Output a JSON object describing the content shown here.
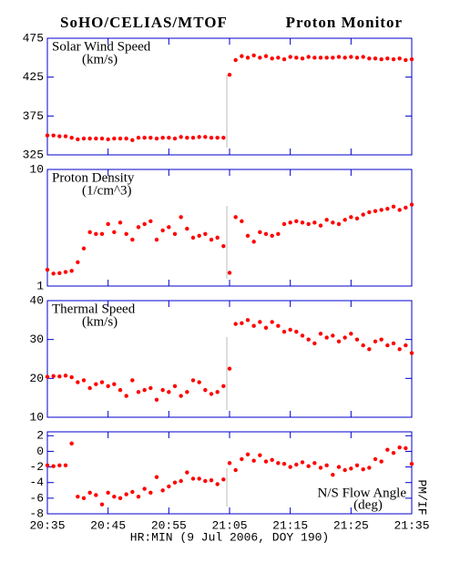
{
  "header": {
    "title": "SoHO/CELIAS/MTOF",
    "subtitle": "Proton Monitor",
    "xlabel": "HR:MIN (9 Jul 2006, DOY 190)",
    "side_label": "PM/IF"
  },
  "chart_data": [
    {
      "type": "scatter",
      "title": "Solar Wind Speed",
      "unit": "(km/s)",
      "color": "#ff0000",
      "log": false,
      "xlim": [
        1235,
        1295
      ],
      "xticks": [
        {
          "value": 1235,
          "label": "20:35"
        },
        {
          "value": 1245,
          "label": "20:45"
        },
        {
          "value": 1255,
          "label": "20:55"
        },
        {
          "value": 1265,
          "label": "21:05"
        },
        {
          "value": 1275,
          "label": "21:15"
        },
        {
          "value": 1285,
          "label": "21:25"
        },
        {
          "value": 1295,
          "label": "21:35"
        }
      ],
      "ylim": [
        325,
        475
      ],
      "yticks": [
        475,
        425,
        375,
        325
      ],
      "x": [
        1235,
        1236,
        1237,
        1238,
        1239,
        1240,
        1241,
        1242,
        1243,
        1244,
        1245,
        1246,
        1247,
        1248,
        1249,
        1250,
        1251,
        1252,
        1253,
        1254,
        1255,
        1256,
        1257,
        1258,
        1259,
        1260,
        1261,
        1262,
        1263,
        1264,
        1265,
        1266,
        1267,
        1268,
        1269,
        1270,
        1271,
        1272,
        1273,
        1274,
        1275,
        1276,
        1277,
        1278,
        1279,
        1280,
        1281,
        1282,
        1283,
        1284,
        1285,
        1286,
        1287,
        1288,
        1289,
        1290,
        1291,
        1292,
        1293,
        1294,
        1295
      ],
      "values": [
        350,
        350,
        349,
        349,
        347,
        345,
        346,
        346,
        346,
        346,
        345,
        346,
        346,
        346,
        344,
        347,
        347,
        347,
        346,
        347,
        347,
        346,
        348,
        347,
        347,
        348,
        348,
        347,
        347,
        347,
        428,
        447,
        452,
        450,
        453,
        450,
        452,
        449,
        450,
        448,
        451,
        450,
        449,
        451,
        450,
        450,
        450,
        450,
        451,
        450,
        451,
        450,
        451,
        449,
        449,
        448,
        449,
        448,
        449,
        447,
        448
      ]
    },
    {
      "type": "scatter",
      "title": "Proton Density",
      "unit": "(1/cm^3)",
      "color": "#ff0000",
      "log": true,
      "xlim": [
        1235,
        1295
      ],
      "xticks": [
        {
          "value": 1235,
          "label": "20:35"
        },
        {
          "value": 1245,
          "label": "20:45"
        },
        {
          "value": 1255,
          "label": "20:55"
        },
        {
          "value": 1265,
          "label": "21:05"
        },
        {
          "value": 1275,
          "label": "21:15"
        },
        {
          "value": 1285,
          "label": "21:25"
        },
        {
          "value": 1295,
          "label": "21:35"
        }
      ],
      "ylim": [
        1,
        10
      ],
      "yticks": [
        10,
        1
      ],
      "x": [
        1235,
        1236,
        1237,
        1238,
        1239,
        1240,
        1241,
        1242,
        1243,
        1244,
        1245,
        1246,
        1247,
        1248,
        1249,
        1250,
        1251,
        1252,
        1253,
        1254,
        1255,
        1256,
        1257,
        1258,
        1259,
        1260,
        1261,
        1262,
        1263,
        1264,
        1265,
        1266,
        1267,
        1268,
        1269,
        1270,
        1271,
        1272,
        1273,
        1274,
        1275,
        1276,
        1277,
        1278,
        1279,
        1280,
        1281,
        1282,
        1283,
        1284,
        1285,
        1286,
        1287,
        1288,
        1289,
        1290,
        1291,
        1292,
        1293,
        1294,
        1295
      ],
      "values": [
        1.38,
        1.28,
        1.29,
        1.32,
        1.35,
        1.6,
        2.1,
        2.9,
        2.8,
        2.8,
        3.4,
        2.9,
        3.5,
        2.8,
        2.5,
        3.2,
        3.4,
        3.6,
        2.5,
        3.0,
        3.2,
        2.8,
        3.9,
        3.1,
        2.6,
        2.7,
        2.8,
        2.5,
        2.6,
        2.2,
        1.3,
        3.9,
        3.6,
        2.7,
        2.4,
        2.9,
        2.8,
        2.7,
        2.8,
        3.4,
        3.5,
        3.6,
        3.5,
        3.4,
        3.5,
        3.3,
        3.7,
        3.5,
        3.4,
        3.7,
        3.9,
        3.8,
        4.1,
        4.3,
        4.4,
        4.5,
        4.6,
        4.8,
        4.5,
        4.7,
        5.0
      ]
    },
    {
      "type": "scatter",
      "title": "Thermal Speed",
      "unit": "(km/s)",
      "color": "#ff0000",
      "log": false,
      "xlim": [
        1235,
        1295
      ],
      "xticks": [
        {
          "value": 1235,
          "label": "20:35"
        },
        {
          "value": 1245,
          "label": "20:45"
        },
        {
          "value": 1255,
          "label": "20:55"
        },
        {
          "value": 1265,
          "label": "21:05"
        },
        {
          "value": 1275,
          "label": "21:15"
        },
        {
          "value": 1285,
          "label": "21:25"
        },
        {
          "value": 1295,
          "label": "21:35"
        }
      ],
      "ylim": [
        10,
        40
      ],
      "yticks": [
        40,
        30,
        20,
        10
      ],
      "x": [
        1235,
        1236,
        1237,
        1238,
        1239,
        1240,
        1241,
        1242,
        1243,
        1244,
        1245,
        1246,
        1247,
        1248,
        1249,
        1250,
        1251,
        1252,
        1253,
        1254,
        1255,
        1256,
        1257,
        1258,
        1259,
        1260,
        1261,
        1262,
        1263,
        1264,
        1265,
        1266,
        1267,
        1268,
        1269,
        1270,
        1271,
        1272,
        1273,
        1274,
        1275,
        1276,
        1277,
        1278,
        1279,
        1280,
        1281,
        1282,
        1283,
        1284,
        1285,
        1286,
        1287,
        1288,
        1289,
        1290,
        1291,
        1292,
        1293,
        1294,
        1295
      ],
      "values": [
        20.4,
        20.6,
        20.5,
        20.7,
        20.3,
        19.0,
        19.5,
        17.5,
        18.5,
        19.0,
        18.0,
        18.5,
        17.0,
        15.5,
        19.5,
        16.5,
        17.0,
        17.5,
        14.5,
        17.0,
        16.5,
        18.0,
        15.5,
        16.5,
        19.5,
        19.0,
        17.0,
        16.0,
        16.5,
        18.0,
        22.5,
        34.0,
        34.2,
        35.0,
        33.5,
        34.5,
        33.0,
        34.5,
        33.5,
        32.0,
        32.5,
        32.0,
        31.0,
        30.0,
        29.0,
        31.5,
        30.5,
        31.0,
        29.5,
        30.5,
        31.5,
        30.0,
        28.5,
        27.5,
        29.5,
        30.0,
        28.5,
        29.0,
        27.5,
        28.5,
        26.5
      ]
    },
    {
      "type": "scatter",
      "title": "N/S Flow Angle",
      "unit": "(deg)",
      "color": "#ff0000",
      "log": false,
      "xlim": [
        1235,
        1295
      ],
      "xticks": [
        {
          "value": 1235,
          "label": "20:35"
        },
        {
          "value": 1245,
          "label": "20:45"
        },
        {
          "value": 1255,
          "label": "20:55"
        },
        {
          "value": 1265,
          "label": "21:05"
        },
        {
          "value": 1275,
          "label": "21:15"
        },
        {
          "value": 1285,
          "label": "21:25"
        },
        {
          "value": 1295,
          "label": "21:35"
        }
      ],
      "ylim": [
        -8,
        2.5
      ],
      "yticks": [
        2,
        0,
        -2,
        -4,
        -6,
        -8
      ],
      "x": [
        1235,
        1236,
        1237,
        1238,
        1239,
        1240,
        1241,
        1242,
        1243,
        1244,
        1245,
        1246,
        1247,
        1248,
        1249,
        1250,
        1251,
        1252,
        1253,
        1254,
        1255,
        1256,
        1257,
        1258,
        1259,
        1260,
        1261,
        1262,
        1263,
        1264,
        1265,
        1266,
        1267,
        1268,
        1269,
        1270,
        1271,
        1272,
        1273,
        1274,
        1275,
        1276,
        1277,
        1278,
        1279,
        1280,
        1281,
        1282,
        1283,
        1284,
        1285,
        1286,
        1287,
        1288,
        1289,
        1290,
        1291,
        1292,
        1293,
        1294,
        1295
      ],
      "values": [
        -1.8,
        -1.9,
        -1.8,
        -1.8,
        1.0,
        -5.8,
        -6.0,
        -5.3,
        -5.6,
        -6.8,
        -5.3,
        -5.8,
        -6.0,
        -5.5,
        -5.2,
        -5.8,
        -4.8,
        -5.3,
        -3.3,
        -5.0,
        -4.5,
        -4.0,
        -3.8,
        -2.7,
        -3.5,
        -3.5,
        -3.8,
        -3.7,
        -4.2,
        -3.6,
        -1.5,
        -2.4,
        -1.0,
        -0.4,
        -1.2,
        -0.5,
        -1.3,
        -1.1,
        -1.5,
        -1.6,
        -2.0,
        -1.7,
        -1.4,
        -1.9,
        -1.5,
        -2.1,
        -1.8,
        -3.0,
        -2.0,
        -2.4,
        -2.2,
        -1.8,
        -2.3,
        -2.1,
        -1.0,
        -1.3,
        0.2,
        -0.2,
        0.5,
        0.4,
        -1.6
      ]
    }
  ]
}
